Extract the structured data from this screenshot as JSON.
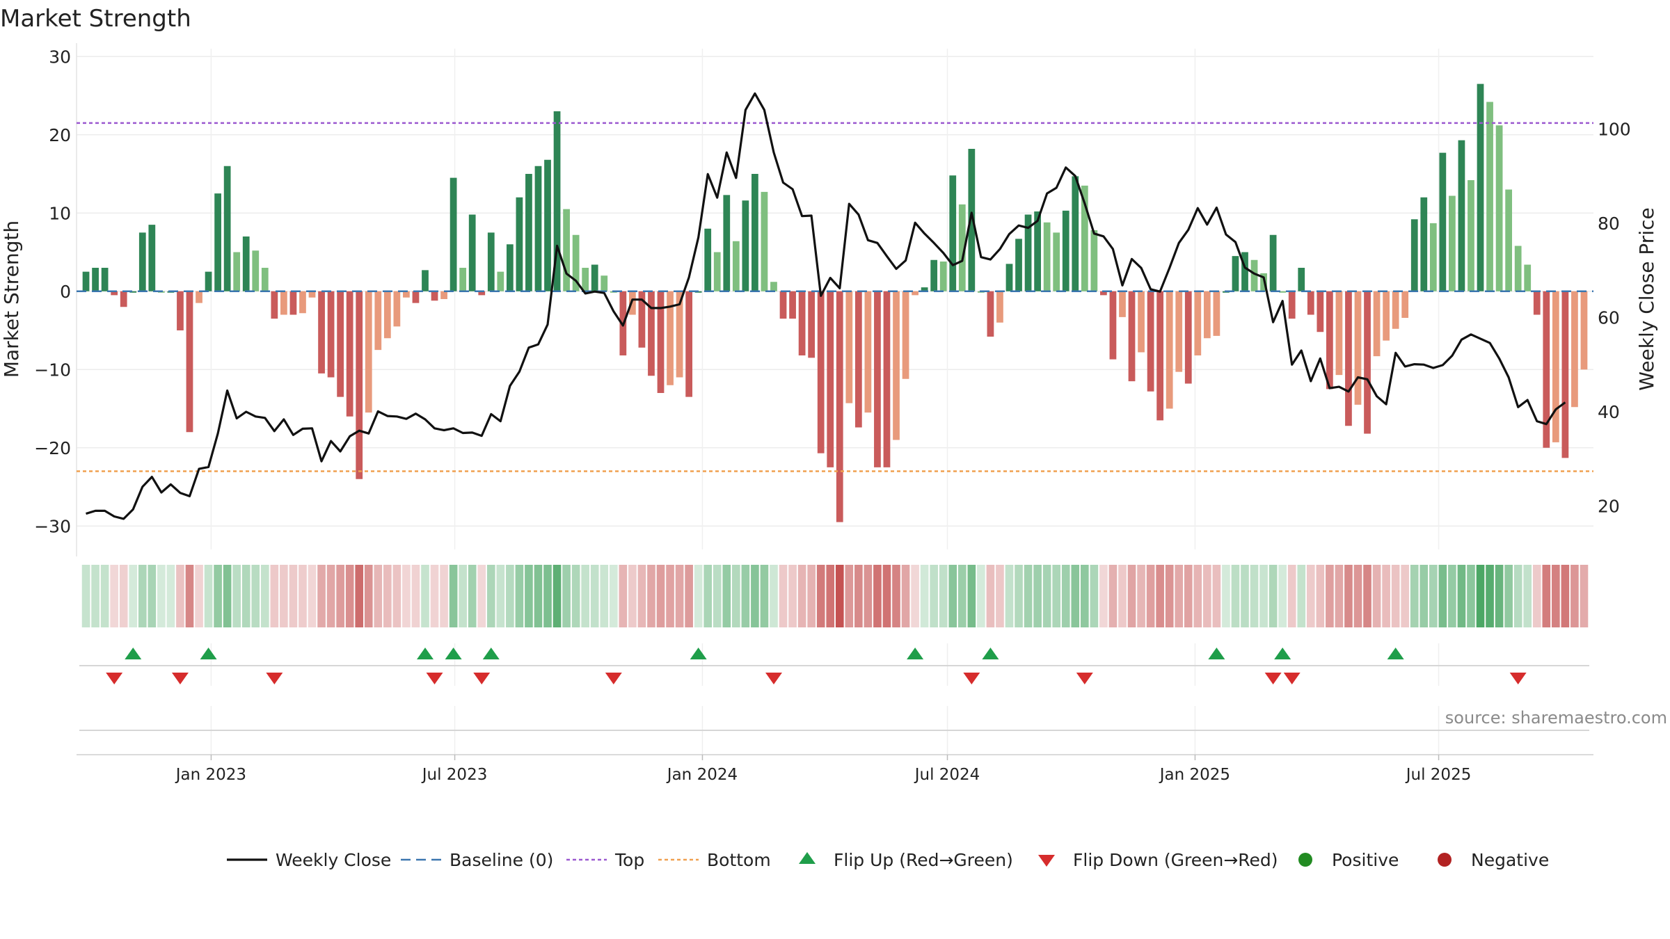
{
  "chart_data": {
    "type": "bar",
    "title": "Market Strength",
    "source": "source: sharemaestro.com",
    "ylabel_left": "Market Strength",
    "ylabel_right": "Weekly Close Price",
    "y_left_range": [
      -33,
      31
    ],
    "y_left_ticks": [
      30,
      20,
      10,
      0,
      -10,
      -20,
      -30
    ],
    "y_left_tick_labels": [
      "30",
      "20",
      "10",
      "0",
      "−10",
      "−20",
      "−30"
    ],
    "y_right_range": [
      10.8,
      117
    ],
    "y_right_ticks": [
      20,
      40,
      60,
      80,
      100
    ],
    "y_right_tick_labels": [
      "20",
      "40",
      "60",
      "80",
      "100"
    ],
    "x_range": [
      "2022-09-23",
      "2025-10-24"
    ],
    "x_ticks": [
      "2023-01-01",
      "2023-07-01",
      "2024-01-01",
      "2024-07-01",
      "2025-01-01",
      "2025-07-01"
    ],
    "x_tick_labels": [
      "Jan 2023",
      "Jul 2023",
      "Jan 2024",
      "Jul 2024",
      "Jan 2025",
      "Jul 2025"
    ],
    "first_week": "2022-09-30",
    "top_level": 21.5,
    "bottom_level": -23,
    "grid": true,
    "legend_position": "bottom-center",
    "colors": {
      "pos_strong": "#2e8555",
      "pos_weak": "#7fbf7f",
      "neg_strong": "#c95b5b",
      "neg_weak": "#e89a7c",
      "line": "#111111",
      "baseline": "#3b76af",
      "top": "#9b59d0",
      "bottom": "#f0a050",
      "flip_up": "#1f9e4a",
      "flip_down": "#d62c2c",
      "positive": "#228b22",
      "negative": "#b22222"
    },
    "strength": [
      2.5,
      3,
      3,
      -0.5,
      -2,
      0,
      7.5,
      8.5,
      0,
      0,
      -5,
      -18,
      -1.5,
      2.5,
      12.5,
      16,
      5,
      7,
      5.2,
      3,
      -3.5,
      -3,
      -3,
      -2.8,
      -0.8,
      -10.5,
      -11,
      -13.5,
      -16,
      -24,
      -15.5,
      -7.5,
      -6,
      -4.5,
      -0.8,
      -1.5,
      2.7,
      -1.2,
      -1,
      14.5,
      3,
      9.8,
      -0.5,
      7.5,
      2.5,
      6,
      12,
      15,
      16,
      16.8,
      23,
      10.5,
      7.2,
      3,
      3.4,
      2,
      0,
      -8.2,
      -3,
      -7.2,
      -10.8,
      -13,
      -12,
      -11,
      -13.5,
      0,
      8,
      5,
      12.3,
      6.4,
      11.6,
      15,
      12.7,
      1.2,
      -3.5,
      -3.5,
      -8.2,
      -8.5,
      -20.7,
      -22.5,
      -29.5,
      -14.3,
      -17.4,
      -15.5,
      -22.5,
      -22.5,
      -19,
      -11.2,
      -0.5,
      0.5,
      4,
      3.8,
      14.8,
      11.1,
      18.2,
      0,
      -5.8,
      -4,
      3.5,
      6.7,
      9.8,
      10.2,
      8.8,
      7.5,
      10.3,
      14.7,
      13.5,
      7.8,
      -0.5,
      -8.7,
      -3.3,
      -11.5,
      -7.8,
      -12.8,
      -16.5,
      -15,
      -10.3,
      -11.8,
      -8.2,
      -6,
      -5.7,
      0,
      4.5,
      5,
      4,
      2.3,
      7.2,
      0,
      -3.5,
      3,
      -3,
      -5.2,
      -12.5,
      -10.7,
      -17.2,
      -14.5,
      -18.2,
      -8.3,
      -6.3,
      -4.8,
      -3.4,
      9.2,
      12,
      8.7,
      17.7,
      12.2,
      19.3,
      14.2,
      26.5,
      24.2,
      21.2,
      13,
      5.8,
      3.4,
      -3,
      -20,
      -19.3,
      -21.3,
      -14.8,
      -10
    ],
    "flip_up_weeks": [
      5,
      13,
      36,
      39,
      43,
      65,
      88,
      96,
      120,
      127,
      139
    ],
    "flip_down_weeks": [
      3,
      10,
      20,
      37,
      42,
      56,
      73,
      94,
      106,
      126,
      128,
      152
    ],
    "weekly_close": [
      18.4,
      19,
      19,
      17.8,
      17.3,
      19.3,
      24.1,
      26.2,
      22.9,
      24.6,
      22.8,
      22.1,
      27.9,
      28.3,
      35.4,
      44.5,
      38.6,
      40,
      39,
      38.7,
      35.9,
      38.4,
      35.1,
      36.4,
      36.5,
      29.5,
      33.8,
      31.6,
      34.8,
      36,
      35.4,
      40.1,
      39.1,
      39,
      38.5,
      39.6,
      38.4,
      36.5,
      36.1,
      36.5,
      35.5,
      35.6,
      34.9,
      39.5,
      38,
      45.5,
      48.5,
      53.6,
      54.3,
      58.5,
      75.2,
      69.3,
      67.8,
      65.1,
      65.5,
      65.2,
      61.3,
      58.3,
      63.8,
      63.8,
      62,
      62,
      62.3,
      62.8,
      68.5,
      77,
      90.4,
      85.4,
      95,
      89.6,
      104,
      107.5,
      104,
      95,
      88.6,
      87.2,
      81.5,
      81.6,
      64.6,
      68.4,
      66.2,
      84.1,
      81.8,
      76.4,
      75.8,
      73,
      70.3,
      72.1,
      80.1,
      77.8,
      75.8,
      73.7,
      71.1,
      72,
      82.2,
      72.8,
      72.3,
      74.5,
      77.7,
      79.5,
      79,
      80.5,
      86.3,
      87.5,
      91.8,
      90,
      84.2,
      77.8,
      77.2,
      74.5,
      66.8,
      72.4,
      70.5,
      66,
      65.5,
      70.5,
      75.8,
      78.6,
      83.2,
      79.7,
      83.3,
      77.6,
      76,
      70.6,
      69.3,
      68.5,
      59,
      63.5,
      50,
      53,
      46.5,
      51.3,
      45,
      45.3,
      44.3,
      47.3,
      46.9,
      43.3,
      41.6,
      52.5,
      49.6,
      50.1,
      50,
      49.3,
      49.9,
      51.9,
      55.3,
      56.4,
      55.5,
      54.6,
      51.3,
      47.3,
      41,
      42.5,
      38,
      37.4,
      40.5,
      42
    ]
  },
  "legend": {
    "items": [
      {
        "key": "line",
        "label": "Weekly Close"
      },
      {
        "key": "baseline",
        "label": "Baseline (0)"
      },
      {
        "key": "top",
        "label": "Top"
      },
      {
        "key": "bottom",
        "label": "Bottom"
      },
      {
        "key": "flip_up",
        "label": "Flip Up (Red→Green)"
      },
      {
        "key": "flip_down",
        "label": "Flip Down (Green→Red)"
      },
      {
        "key": "positive",
        "label": "Positive"
      },
      {
        "key": "negative",
        "label": "Negative"
      }
    ]
  }
}
